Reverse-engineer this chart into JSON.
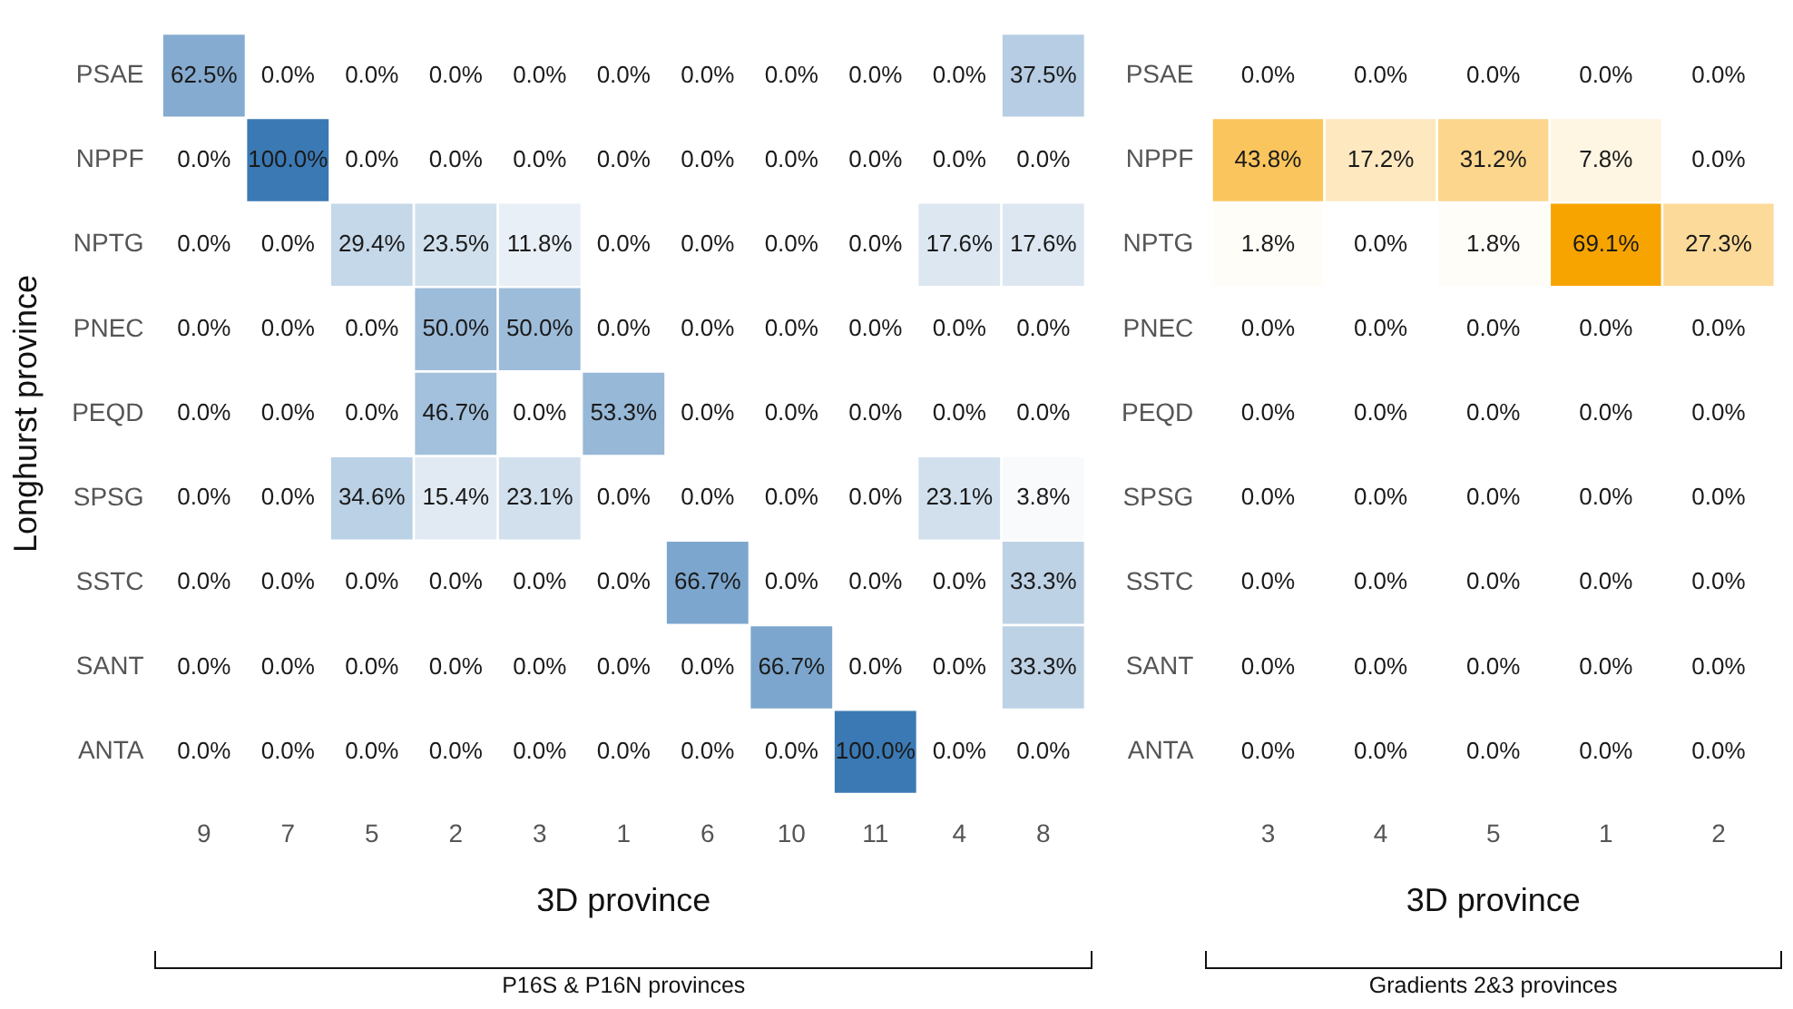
{
  "chart_data": [
    {
      "type": "heatmap",
      "xlabel": "3D province",
      "ylabel": "Longhurst province",
      "color": "#3b79b4",
      "grid": false,
      "annotations": [
        "P16S & P16N provinces"
      ],
      "categories": [
        "9",
        "7",
        "5",
        "2",
        "3",
        "1",
        "6",
        "10",
        "11",
        "4",
        "8"
      ],
      "y_categories": [
        "PSAE",
        "NPPF",
        "NPTG",
        "PNEC",
        "PEQD",
        "SPSG",
        "SSTC",
        "SANT",
        "ANTA"
      ],
      "cells": [
        [
          62.5,
          0,
          0,
          0,
          0,
          0,
          0,
          0,
          0,
          0,
          37.5
        ],
        [
          0,
          100,
          0,
          0,
          0,
          0,
          0,
          0,
          0,
          0,
          0
        ],
        [
          0,
          0,
          29.4,
          23.5,
          11.8,
          0,
          0,
          0,
          0,
          17.6,
          17.6
        ],
        [
          0,
          0,
          0,
          50,
          50,
          0,
          0,
          0,
          0,
          0,
          0
        ],
        [
          0,
          0,
          0,
          46.7,
          0,
          53.3,
          0,
          0,
          0,
          0,
          0
        ],
        [
          0,
          0,
          34.6,
          15.4,
          23.1,
          0,
          0,
          0,
          0,
          23.1,
          3.8
        ],
        [
          0,
          0,
          0,
          0,
          0,
          0,
          66.7,
          0,
          0,
          0,
          33.3
        ],
        [
          0,
          0,
          0,
          0,
          0,
          0,
          0,
          66.7,
          0,
          0,
          33.3
        ],
        [
          0,
          0,
          0,
          0,
          0,
          0,
          0,
          0,
          100,
          0,
          0
        ]
      ],
      "cell_labels": [
        [
          "62.5%",
          "0.0%",
          "0.0%",
          "0.0%",
          "0.0%",
          "0.0%",
          "0.0%",
          "0.0%",
          "0.0%",
          "0.0%",
          "37.5%"
        ],
        [
          "0.0%",
          "100.0%",
          "0.0%",
          "0.0%",
          "0.0%",
          "0.0%",
          "0.0%",
          "0.0%",
          "0.0%",
          "0.0%",
          "0.0%"
        ],
        [
          "0.0%",
          "0.0%",
          "29.4%",
          "23.5%",
          "11.8%",
          "0.0%",
          "0.0%",
          "0.0%",
          "0.0%",
          "17.6%",
          "17.6%"
        ],
        [
          "0.0%",
          "0.0%",
          "0.0%",
          "50.0%",
          "50.0%",
          "0.0%",
          "0.0%",
          "0.0%",
          "0.0%",
          "0.0%",
          "0.0%"
        ],
        [
          "0.0%",
          "0.0%",
          "0.0%",
          "46.7%",
          "0.0%",
          "53.3%",
          "0.0%",
          "0.0%",
          "0.0%",
          "0.0%",
          "0.0%"
        ],
        [
          "0.0%",
          "0.0%",
          "34.6%",
          "15.4%",
          "23.1%",
          "0.0%",
          "0.0%",
          "0.0%",
          "0.0%",
          "23.1%",
          "3.8%"
        ],
        [
          "0.0%",
          "0.0%",
          "0.0%",
          "0.0%",
          "0.0%",
          "0.0%",
          "66.7%",
          "0.0%",
          "0.0%",
          "0.0%",
          "33.3%"
        ],
        [
          "0.0%",
          "0.0%",
          "0.0%",
          "0.0%",
          "0.0%",
          "0.0%",
          "0.0%",
          "66.7%",
          "0.0%",
          "0.0%",
          "33.3%"
        ],
        [
          "0.0%",
          "0.0%",
          "0.0%",
          "0.0%",
          "0.0%",
          "0.0%",
          "0.0%",
          "0.0%",
          "100.0%",
          "0.0%",
          "0.0%"
        ]
      ]
    },
    {
      "type": "heatmap",
      "xlabel": "3D province",
      "color": "#f7a400",
      "grid": false,
      "annotations": [
        "Gradients 2&3 provinces"
      ],
      "categories": [
        "3",
        "4",
        "5",
        "1",
        "2"
      ],
      "y_categories": [
        "PSAE",
        "NPPF",
        "NPTG",
        "PNEC",
        "PEQD",
        "SPSG",
        "SSTC",
        "SANT",
        "ANTA"
      ],
      "cells": [
        [
          0,
          0,
          0,
          0,
          0
        ],
        [
          43.8,
          17.2,
          31.2,
          7.8,
          0
        ],
        [
          1.8,
          0,
          1.8,
          69.1,
          27.3
        ],
        [
          0,
          0,
          0,
          0,
          0
        ],
        [
          0,
          0,
          0,
          0,
          0
        ],
        [
          0,
          0,
          0,
          0,
          0
        ],
        [
          0,
          0,
          0,
          0,
          0
        ],
        [
          0,
          0,
          0,
          0,
          0
        ],
        [
          0,
          0,
          0,
          0,
          0
        ]
      ],
      "cell_labels": [
        [
          "0.0%",
          "0.0%",
          "0.0%",
          "0.0%",
          "0.0%"
        ],
        [
          "43.8%",
          "17.2%",
          "31.2%",
          "7.8%",
          "0.0%"
        ],
        [
          "1.8%",
          "0.0%",
          "1.8%",
          "69.1%",
          "27.3%"
        ],
        [
          "0.0%",
          "0.0%",
          "0.0%",
          "0.0%",
          "0.0%"
        ],
        [
          "0.0%",
          "0.0%",
          "0.0%",
          "0.0%",
          "0.0%"
        ],
        [
          "0.0%",
          "0.0%",
          "0.0%",
          "0.0%",
          "0.0%"
        ],
        [
          "0.0%",
          "0.0%",
          "0.0%",
          "0.0%",
          "0.0%"
        ],
        [
          "0.0%",
          "0.0%",
          "0.0%",
          "0.0%",
          "0.0%"
        ],
        [
          "0.0%",
          "0.0%",
          "0.0%",
          "0.0%",
          "0.0%"
        ]
      ]
    }
  ]
}
